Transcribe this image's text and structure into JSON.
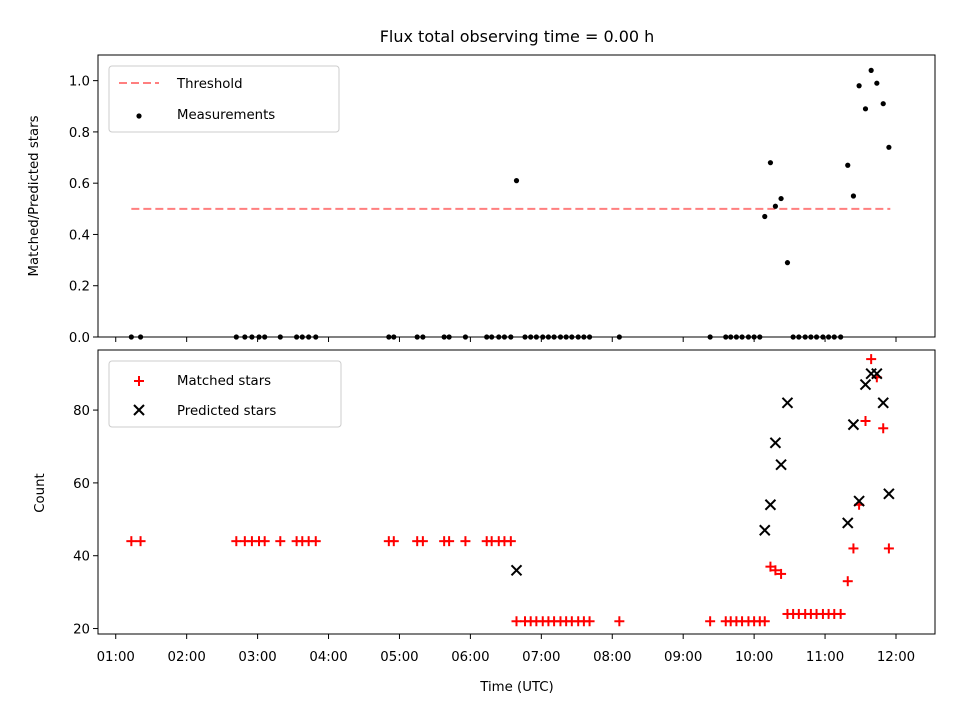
{
  "chart_data": [
    {
      "type": "scatter",
      "title": "Flux total observing time = 0.00 h",
      "xlabel": "",
      "ylabel": "Matched/Predicted stars",
      "ylim": [
        0,
        1.1
      ],
      "yticks": [
        0.0,
        0.2,
        0.4,
        0.6,
        0.8,
        1.0
      ],
      "yticklabels": [
        "0.0",
        "0.2",
        "0.4",
        "0.6",
        "0.8",
        "1.0"
      ],
      "xlim": [
        0.75,
        12.55
      ],
      "legend": "upper-left",
      "threshold": {
        "name": "Threshold",
        "value": 0.5,
        "x": [
          1.22,
          11.92
        ],
        "color": "#ff7f7f"
      },
      "series": [
        {
          "name": "Measurements",
          "color": "#000000",
          "x": [
            1.22,
            1.35,
            2.7,
            2.82,
            2.92,
            3.02,
            3.1,
            3.32,
            3.55,
            3.63,
            3.72,
            3.82,
            4.85,
            4.92,
            5.25,
            5.33,
            5.63,
            5.7,
            5.93,
            6.23,
            6.3,
            6.4,
            6.48,
            6.57,
            6.65,
            6.77,
            6.85,
            6.93,
            7.02,
            7.1,
            7.18,
            7.27,
            7.35,
            7.43,
            7.52,
            7.6,
            7.68,
            8.1,
            9.38,
            9.6,
            9.67,
            9.75,
            9.83,
            9.92,
            10.0,
            10.08,
            10.15,
            10.23,
            10.3,
            10.38,
            10.47,
            10.55,
            10.63,
            10.72,
            10.8,
            10.88,
            10.97,
            11.05,
            11.13,
            11.22,
            11.32,
            11.4,
            11.48,
            11.57,
            11.65,
            11.73,
            11.82,
            11.9
          ],
          "y": [
            0,
            0,
            0,
            0,
            0,
            0,
            0,
            0,
            0,
            0,
            0,
            0,
            0,
            0,
            0,
            0,
            0,
            0,
            0,
            0,
            0,
            0,
            0,
            0,
            0.61,
            0,
            0,
            0,
            0,
            0,
            0,
            0,
            0,
            0,
            0,
            0,
            0,
            0,
            0,
            0,
            0,
            0,
            0,
            0,
            0,
            0,
            0.47,
            0.68,
            0.51,
            0.54,
            0.29,
            0,
            0,
            0,
            0,
            0,
            0,
            0,
            0,
            0,
            0.67,
            0.55,
            0.98,
            0.89,
            1.04,
            0.99,
            0.91,
            0.74
          ]
        }
      ]
    },
    {
      "type": "scatter",
      "title": "",
      "xlabel": "Time (UTC)",
      "ylabel": "Count",
      "ylim": [
        18.5,
        96.5
      ],
      "yticks": [
        20,
        40,
        60,
        80
      ],
      "yticklabels": [
        "20",
        "40",
        "60",
        "80"
      ],
      "xlim": [
        0.75,
        12.55
      ],
      "xticks": [
        1,
        2,
        3,
        4,
        5,
        6,
        7,
        8,
        9,
        10,
        11,
        12
      ],
      "xticklabels": [
        "01:00",
        "02:00",
        "03:00",
        "04:00",
        "05:00",
        "06:00",
        "07:00",
        "08:00",
        "09:00",
        "10:00",
        "11:00",
        "12:00"
      ],
      "legend": "upper-left",
      "x": [
        1.22,
        1.35,
        2.7,
        2.82,
        2.92,
        3.02,
        3.1,
        3.32,
        3.55,
        3.63,
        3.72,
        3.82,
        4.85,
        4.92,
        5.25,
        5.33,
        5.63,
        5.7,
        5.93,
        6.23,
        6.3,
        6.4,
        6.48,
        6.57,
        6.65,
        6.77,
        6.85,
        6.93,
        7.02,
        7.1,
        7.18,
        7.27,
        7.35,
        7.43,
        7.52,
        7.6,
        7.68,
        8.1,
        9.38,
        9.6,
        9.67,
        9.75,
        9.83,
        9.92,
        10.0,
        10.08,
        10.15,
        10.23,
        10.3,
        10.38,
        10.47,
        10.55,
        10.63,
        10.72,
        10.8,
        10.88,
        10.97,
        11.05,
        11.13,
        11.22,
        11.32,
        11.4,
        11.48,
        11.57,
        11.65,
        11.73,
        11.82,
        11.9
      ],
      "series": [
        {
          "name": "Matched stars",
          "marker": "plus",
          "color": "#ff0000",
          "values": [
            44,
            44,
            44,
            44,
            44,
            44,
            44,
            44,
            44,
            44,
            44,
            44,
            44,
            44,
            44,
            44,
            44,
            44,
            44,
            44,
            44,
            44,
            44,
            44,
            22,
            22,
            22,
            22,
            22,
            22,
            22,
            22,
            22,
            22,
            22,
            22,
            22,
            22,
            22,
            22,
            22,
            22,
            22,
            22,
            22,
            22,
            22,
            37,
            36,
            35,
            24,
            24,
            24,
            24,
            24,
            24,
            24,
            24,
            24,
            24,
            33,
            42,
            54,
            77,
            94,
            89,
            75,
            42
          ]
        },
        {
          "name": "Predicted stars",
          "marker": "x",
          "color": "#000000",
          "x": [
            6.65,
            10.15,
            10.23,
            10.3,
            10.38,
            10.47,
            11.32,
            11.4,
            11.48,
            11.57,
            11.65,
            11.73,
            11.82,
            11.9
          ],
          "values": [
            36,
            47,
            54,
            71,
            65,
            82,
            49,
            76,
            55,
            87,
            90,
            90,
            82,
            57
          ]
        }
      ]
    }
  ]
}
